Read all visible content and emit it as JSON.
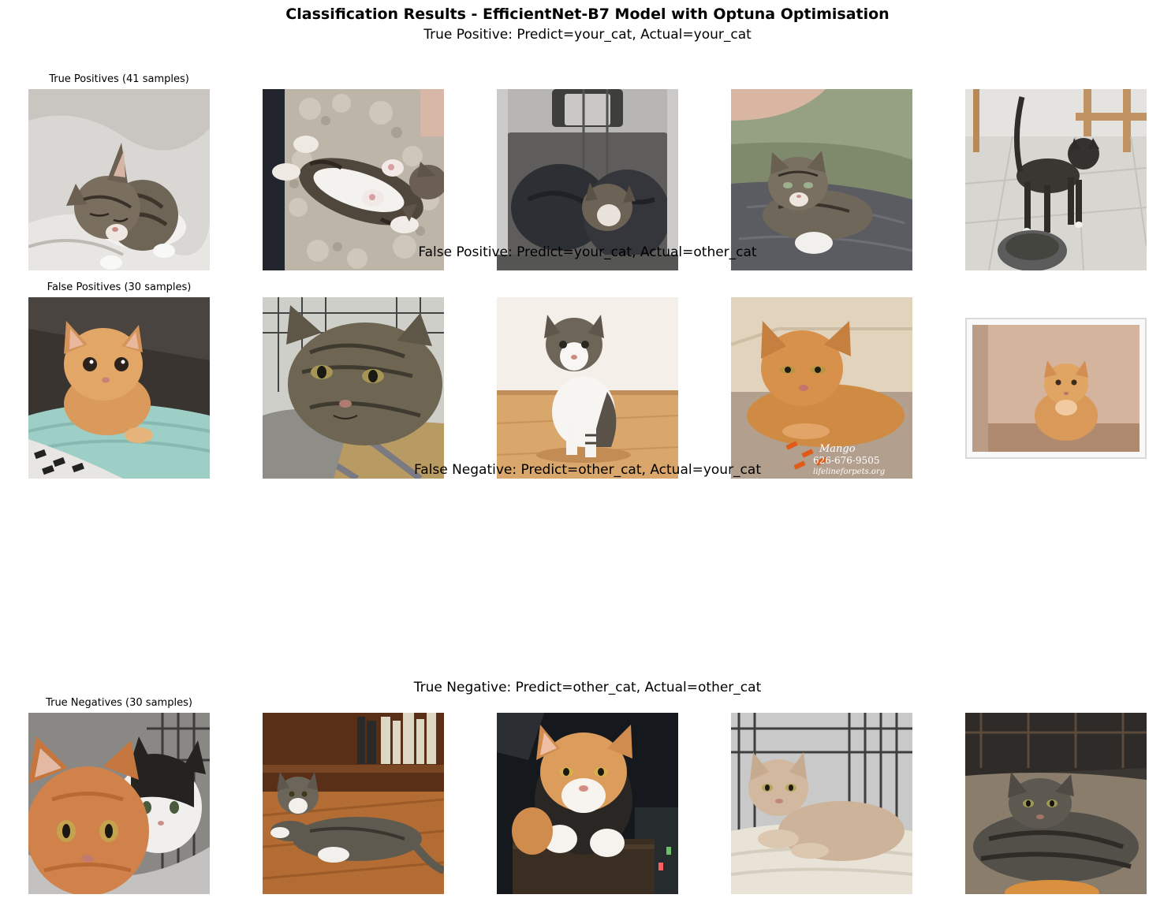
{
  "figure": {
    "title": "Classification Results - EfficientNet-B7 Model with Optuna Optimisation"
  },
  "rows": [
    {
      "row_title": "True Positive: Predict=your_cat, Actual=your_cat",
      "first_axis_title": "True Positives (41 samples)",
      "images": [
        {
          "icon": "tabby-kitten-sleeping-on-blanket-photo"
        },
        {
          "icon": "kitten-lying-on-back-on-fluffy-rug-photo"
        },
        {
          "icon": "cats-curled-in-plastic-crate-photo"
        },
        {
          "icon": "tabby-kitten-on-lap-photo"
        },
        {
          "icon": "dark-kitten-standing-near-bowl-photo"
        }
      ]
    },
    {
      "row_title": "False Positive: Predict=your_cat, Actual=other_cat",
      "first_axis_title": "False Positives (30 samples)",
      "images": [
        {
          "icon": "orange-kitten-on-towel-photo"
        },
        {
          "icon": "tabby-cat-lying-in-cage-photo"
        },
        {
          "icon": "white-tabby-kitten-on-wood-floor-photo"
        },
        {
          "icon": "orange-cat-on-carpet-with-toy-photo",
          "caption": [
            "Mango",
            "626-676-9505",
            "lifelineforpets.org"
          ]
        },
        {
          "icon": "framed-photo-of-orange-cat"
        }
      ]
    },
    {
      "row_title": "False Negative: Predict=other_cat, Actual=your_cat",
      "images": []
    },
    {
      "row_title": "True Negative: Predict=other_cat, Actual=other_cat",
      "first_axis_title": "True Negatives (30 samples)",
      "images": [
        {
          "icon": "orange-and-black-white-cats-in-hammock-photo"
        },
        {
          "icon": "tabby-white-cat-lying-on-wood-floor-photo"
        },
        {
          "icon": "orange-white-cat-on-cat-tree-photo"
        },
        {
          "icon": "cream-cat-lying-in-cage-photo"
        },
        {
          "icon": "tabby-cat-lying-on-carpet-photo"
        }
      ]
    }
  ]
}
